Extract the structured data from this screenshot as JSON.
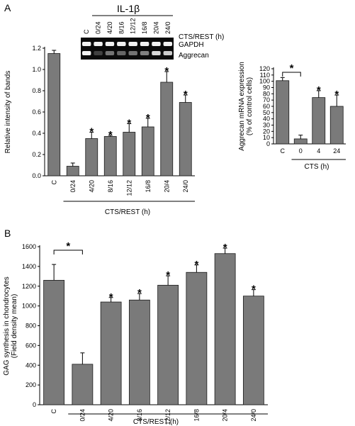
{
  "panel_a_label": "A",
  "panel_b_label": "B",
  "gel": {
    "title": "IL-1β",
    "lane_labels": [
      "C",
      "0/24",
      "4/20",
      "8/16",
      "12/12",
      "16/8",
      "20/4",
      "24/0"
    ],
    "condition_label": "CTS/REST (h)",
    "rows": [
      "GAPDH",
      "Aggrecan"
    ],
    "gapdh_intensity": [
      0.95,
      0.95,
      0.95,
      0.95,
      0.95,
      0.95,
      0.95,
      0.95
    ],
    "aggrecan_intensity": [
      0.95,
      0.25,
      0.45,
      0.4,
      0.45,
      0.5,
      0.85,
      0.8
    ]
  },
  "chart_data": [
    {
      "type": "bar",
      "ylabel": "Relative intensity of bands",
      "xlabel": "CTS/REST (h)",
      "ylim": [
        0,
        1.2
      ],
      "yticks": [
        0.0,
        0.2,
        0.4,
        0.6,
        0.8,
        1.0,
        1.2
      ],
      "ytick_labels": [
        "0.0",
        "0.2",
        "0.4",
        "0.6",
        "0.8",
        "1.0",
        "1.2"
      ],
      "categories": [
        "C",
        "0/24",
        "4/20",
        "8/16",
        "12/12",
        "16/8",
        "20/4",
        "24/0"
      ],
      "values": [
        1.15,
        0.09,
        0.35,
        0.37,
        0.41,
        0.46,
        0.88,
        0.69
      ],
      "errors": [
        0.03,
        0.03,
        0.06,
        0.01,
        0.08,
        0.08,
        0.1,
        0.07
      ],
      "significant": [
        false,
        false,
        true,
        true,
        true,
        true,
        true,
        true
      ],
      "marker": "*",
      "bracket": {
        "from_index": 1,
        "to_index": 7
      },
      "grid": false
    },
    {
      "type": "bar",
      "ylabel": [
        "Aggrecan mRNA expression",
        "(% of control cells)"
      ],
      "xlabel": "CTS (h)",
      "ylim": [
        0,
        120
      ],
      "yticks": [
        0,
        10,
        20,
        30,
        40,
        50,
        60,
        70,
        80,
        90,
        100,
        110,
        120
      ],
      "ytick_labels": [
        "0",
        "10",
        "20",
        "30",
        "40",
        "50",
        "60",
        "70",
        "80",
        "90",
        "100",
        "110",
        "120"
      ],
      "categories": [
        "C",
        "0",
        "4",
        "24"
      ],
      "values": [
        101,
        8,
        74,
        60
      ],
      "errors": [
        5,
        6,
        11,
        18
      ],
      "significant": [
        false,
        false,
        true,
        true
      ],
      "marker": "*",
      "comparison": {
        "from_index": 0,
        "to_index": 1
      },
      "bracket": {
        "from_index": 1,
        "to_index": 3
      },
      "grid": false
    },
    {
      "type": "bar",
      "ylabel": [
        "GAG synthesis in chondrocytes",
        "(Field density mean)"
      ],
      "xlabel": "CTS/REST (h)",
      "ylim": [
        0,
        1600
      ],
      "yticks": [
        0,
        200,
        400,
        600,
        800,
        1000,
        1200,
        1400,
        1600
      ],
      "ytick_labels": [
        "0",
        "200",
        "400",
        "600",
        "800",
        "1000",
        "1200",
        "1400",
        "1600"
      ],
      "categories": [
        "C",
        "0/24",
        "4/20",
        "8/16",
        "12/12",
        "16/8",
        "20/4",
        "24/0"
      ],
      "values": [
        1260,
        410,
        1040,
        1060,
        1210,
        1340,
        1530,
        1100
      ],
      "errors": [
        160,
        115,
        45,
        65,
        95,
        75,
        55,
        65
      ],
      "significant": [
        false,
        false,
        true,
        true,
        true,
        true,
        true,
        true
      ],
      "marker": "*",
      "comparison": {
        "from_index": 0,
        "to_index": 1
      },
      "bracket": {
        "from_index": 1,
        "to_index": 7
      },
      "grid": false
    }
  ]
}
